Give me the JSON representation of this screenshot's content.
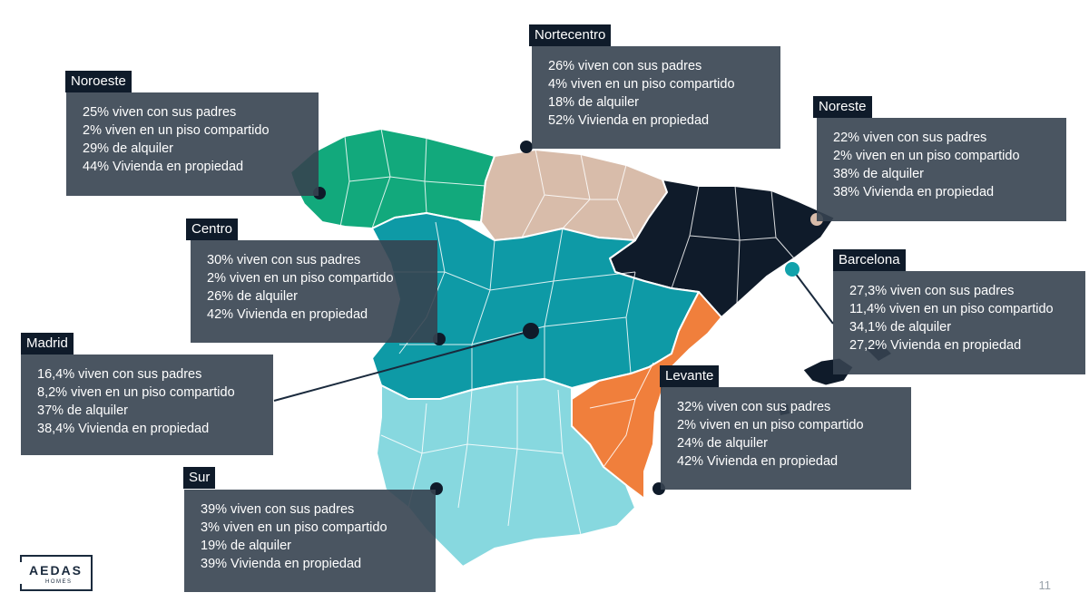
{
  "colors": {
    "noroeste": "#12a97c",
    "nortecentro": "#d8bcaa",
    "noreste": "#0f1b2a",
    "centro": "#0e9aa6",
    "levante": "#f07f3c",
    "sur": "#87d8df",
    "barcelona_marker": "#12a2ab",
    "box": "#364250",
    "tag": "#0f1b2a"
  },
  "regions": [
    {
      "id": "noroeste",
      "title": "Noroeste",
      "lines": [
        "25% viven con sus padres",
        "2% viven en un piso compartido",
        "29% de alquiler",
        "44% Vivienda en propiedad"
      ]
    },
    {
      "id": "nortecentro",
      "title": "Nortecentro",
      "lines": [
        "26% viven con sus padres",
        "4% viven en un piso compartido",
        "18% de alquiler",
        "52% Vivienda en propiedad"
      ]
    },
    {
      "id": "noreste",
      "title": "Noreste",
      "lines": [
        "22% viven con sus padres",
        "2% viven en un piso compartido",
        "38% de alquiler",
        "38% Vivienda en propiedad"
      ]
    },
    {
      "id": "centro",
      "title": "Centro",
      "lines": [
        "30% viven con sus padres",
        "2% viven en un piso compartido",
        "26% de alquiler",
        "42% Vivienda en propiedad"
      ]
    },
    {
      "id": "barcelona",
      "title": "Barcelona",
      "lines": [
        "27,3% viven con sus padres",
        "11,4% viven en un piso compartido",
        "34,1% de alquiler",
        "27,2% Vivienda en propiedad"
      ]
    },
    {
      "id": "madrid",
      "title": "Madrid",
      "lines": [
        "16,4% viven con sus padres",
        "8,2% viven en un piso compartido",
        "37% de alquiler",
        "38,4% Vivienda en propiedad"
      ]
    },
    {
      "id": "levante",
      "title": "Levante",
      "lines": [
        "32% viven con sus padres",
        "2% viven en un piso compartido",
        "24% de alquiler",
        "42% Vivienda en propiedad"
      ]
    },
    {
      "id": "sur",
      "title": "Sur",
      "lines": [
        "39% viven con sus padres",
        "3% viven en un piso compartido",
        "19% de alquiler",
        "39% Vivienda en propiedad"
      ]
    }
  ],
  "logo": {
    "name": "AEDAS",
    "sub": "HOMES"
  },
  "page_number": "11",
  "icons": {
    "marker": "circle-marker-icon"
  }
}
